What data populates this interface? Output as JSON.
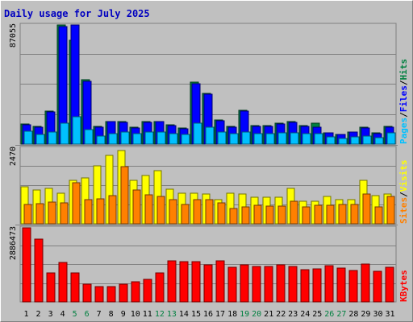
{
  "chart_data": {
    "type": "bar",
    "title": "Daily usage for July 2025",
    "categories": [
      "1",
      "2",
      "3",
      "4",
      "5",
      "6",
      "7",
      "8",
      "9",
      "10",
      "11",
      "12",
      "13",
      "14",
      "15",
      "16",
      "17",
      "18",
      "19",
      "20",
      "21",
      "22",
      "23",
      "24",
      "25",
      "26",
      "27",
      "28",
      "29",
      "30",
      "31"
    ],
    "weekend_days": [
      "5",
      "6",
      "12",
      "13",
      "19",
      "20",
      "26",
      "27"
    ],
    "panels": [
      {
        "id": "hits_files_pages",
        "ytick_label": "87055",
        "ylim": [
          0,
          87055
        ],
        "legend": [
          {
            "text": "Pages",
            "color": "#00c0ff"
          },
          {
            "text": "/",
            "color": "#000000"
          },
          {
            "text": "Files",
            "color": "#0000ff"
          },
          {
            "text": "/",
            "color": "#000000"
          },
          {
            "text": "Hits",
            "color": "#008040"
          }
        ],
        "series": [
          {
            "name": "Hits",
            "color": "#008040",
            "values": [
              14500,
              12500,
              24000,
              86000,
              75000,
              46500,
              12500,
              16500,
              16000,
              12000,
              16000,
              16500,
              14000,
              11500,
              44500,
              36500,
              17500,
              12800,
              24500,
              13500,
              13500,
              15200,
              16200,
              13500,
              15000,
              8200,
              6800,
              8500,
              12000,
              8000,
              12500
            ]
          },
          {
            "name": "Files",
            "color": "#0000ff",
            "values": [
              14000,
              12000,
              23500,
              85000,
              86000,
              45500,
              12000,
              16000,
              15500,
              11500,
              15500,
              16000,
              13500,
              11000,
              43500,
              36000,
              17000,
              12300,
              24000,
              13000,
              13000,
              14700,
              15700,
              13000,
              12000,
              8200,
              6800,
              8500,
              11500,
              7800,
              12000
            ]
          },
          {
            "name": "Pages",
            "color": "#00c0ff",
            "values": [
              9000,
              7000,
              8500,
              15000,
              20000,
              10500,
              6000,
              7500,
              8500,
              7500,
              8500,
              8500,
              7500,
              7000,
              15000,
              12000,
              8500,
              7500,
              8500,
              7500,
              7500,
              8000,
              8000,
              7500,
              7500,
              5000,
              4200,
              5000,
              6000,
              4500,
              8000
            ]
          }
        ]
      },
      {
        "id": "visits_sites",
        "ytick_label": "2470",
        "ylim": [
          0,
          2470
        ],
        "legend": [
          {
            "text": "Sites",
            "color": "#ff8000"
          },
          {
            "text": "/",
            "color": "#000000"
          },
          {
            "text": "Visits",
            "color": "#ffff00"
          }
        ],
        "series": [
          {
            "name": "Visits",
            "color": "#ffff00",
            "values": [
              1190,
              1090,
              1140,
              980,
              1380,
              1470,
              1860,
              2190,
              2350,
              1400,
              1550,
              1710,
              1100,
              980,
              980,
              960,
              760,
              980,
              960,
              840,
              850,
              840,
              1140,
              730,
              730,
              870,
              760,
              780,
              1380,
              900,
              960
            ]
          },
          {
            "name": "Sites",
            "color": "#ff8000",
            "values": [
              630,
              650,
              700,
              670,
              1320,
              780,
              790,
              910,
              1830,
              1070,
              920,
              880,
              770,
              610,
              760,
              770,
              660,
              490,
              530,
              600,
              560,
              560,
              720,
              530,
              580,
              600,
              620,
              630,
              940,
              540,
              870
            ]
          }
        ]
      },
      {
        "id": "kbytes",
        "ytick_label": "2886473",
        "ylim": [
          0,
          2886473
        ],
        "legend": [
          {
            "text": "KBytes",
            "color": "#ff0000"
          }
        ],
        "series": [
          {
            "name": "KBytes",
            "color": "#ff0000",
            "values": [
              2810000,
              2400000,
              1100000,
              1500000,
              1100000,
              690000,
              580000,
              580000,
              690000,
              760000,
              860000,
              1100000,
              1570000,
              1530000,
              1530000,
              1410000,
              1570000,
              1320000,
              1400000,
              1360000,
              1360000,
              1410000,
              1360000,
              1230000,
              1250000,
              1380000,
              1280000,
              1210000,
              1440000,
              1170000,
              1320000
            ]
          }
        ]
      }
    ],
    "grid": true,
    "legend_placement": "right-vertical"
  }
}
